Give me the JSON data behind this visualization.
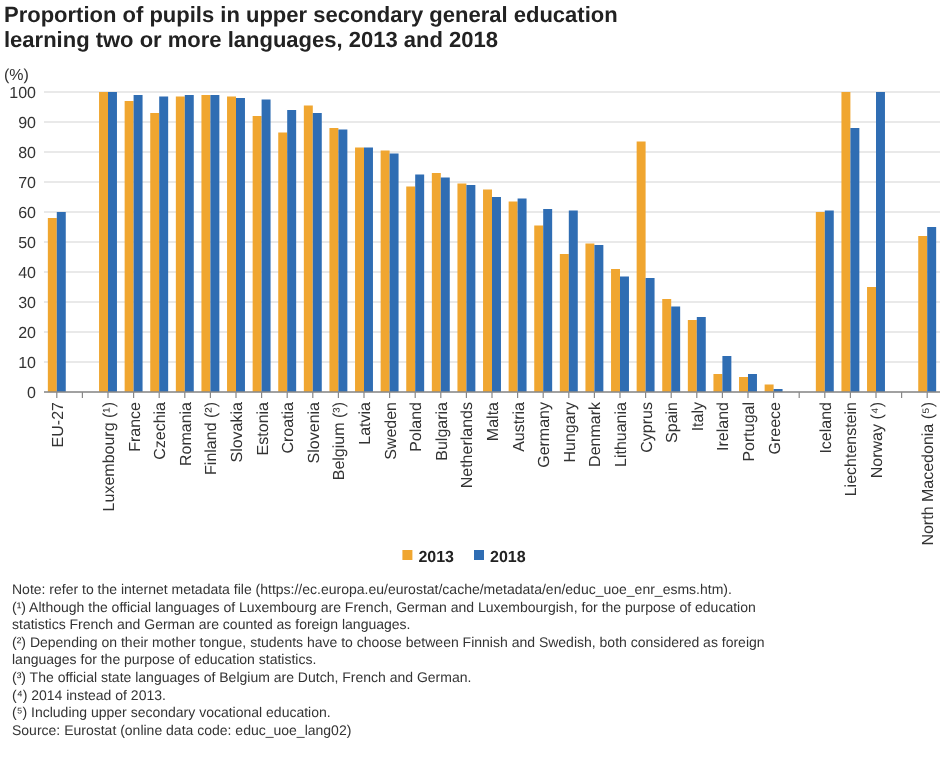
{
  "chart_data": {
    "type": "bar",
    "title": "Proportion of pupils in upper secondary general education learning two or more languages, 2013 and 2018",
    "ylabel": "(%)",
    "categories": [
      "EU-27",
      null,
      "Luxembourg (¹)",
      "France",
      "Czechia",
      "Romania",
      "Finland (²)",
      "Slovakia",
      "Estonia",
      "Croatia",
      "Slovenia",
      "Belgium (³)",
      "Latvia",
      "Sweden",
      "Poland",
      "Bulgaria",
      "Netherlands",
      "Malta",
      "Austria",
      "Germany",
      "Hungary",
      "Denmark",
      "Lithuania",
      "Cyprus",
      "Spain",
      "Italy",
      "Ireland",
      "Portugal",
      "Greece",
      null,
      "Iceland",
      "Liechtenstein",
      "Norway (⁴)",
      null,
      "North Macedonia (⁵)"
    ],
    "series": [
      {
        "name": "2013",
        "color": "#f0a630",
        "values": [
          58,
          null,
          100,
          97,
          93,
          98.5,
          99,
          98.5,
          92,
          86.5,
          95.5,
          88,
          81.5,
          80.5,
          68.5,
          73,
          69.5,
          67.5,
          63.5,
          55.5,
          46,
          49.5,
          41,
          83.5,
          31,
          24,
          6,
          5,
          2.5,
          null,
          60,
          100,
          35,
          null,
          52
        ]
      },
      {
        "name": "2018",
        "color": "#2f6db3",
        "values": [
          60,
          null,
          100,
          99,
          98.5,
          99,
          99,
          98,
          97.5,
          94,
          93,
          87.5,
          81.5,
          79.5,
          72.5,
          71.5,
          69,
          65,
          64.5,
          61,
          60.5,
          49,
          38.5,
          38,
          28.5,
          25,
          12,
          6,
          1,
          null,
          60.5,
          88,
          100,
          null,
          55
        ]
      }
    ],
    "ylim": [
      0,
      100
    ],
    "yticks": [
      0,
      10,
      20,
      30,
      40,
      50,
      60,
      70,
      80,
      90,
      100
    ],
    "grid": "y",
    "legend": "bottom",
    "annotations": [
      "Note: refer to the internet metadata file (https://ec.europa.eu/eurostat/cache/metadata/en/educ_uoe_enr_esms.htm).",
      "(¹) Although the official languages of Luxembourg are French, German and Luxembourgish, for the purpose of education statistics French and German are counted as foreign languages.",
      "(²) Depending on their mother tongue, students have to choose between Finnish and Swedish, both considered as foreign languages for the purpose of education statistics.",
      "(³) The official state languages of Belgium are Dutch, French and German.",
      "(⁴) 2014 instead of 2013.",
      "(⁵) Including upper secondary vocational education.",
      "Source: Eurostat (online data code: educ_uoe_lang02)"
    ]
  }
}
